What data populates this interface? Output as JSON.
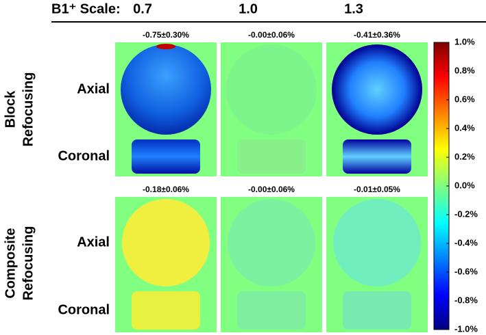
{
  "header": {
    "label": "B1⁺ Scale:",
    "columns": [
      "0.7",
      "1.0",
      "1.3"
    ]
  },
  "groups": [
    {
      "label_lines": [
        "Block",
        "Refocusing"
      ],
      "stats": [
        "-0.75±0.30%",
        "-0.00±0.06%",
        "-0.41±0.36%"
      ],
      "rows": [
        "Axial",
        "Coronal"
      ]
    },
    {
      "label_lines": [
        "Composite",
        "Refocusing"
      ],
      "stats": [
        "-0.18±0.06%",
        "-0.00±0.06%",
        "-0.01±0.05%"
      ],
      "rows": [
        "Axial",
        "Coronal"
      ]
    }
  ],
  "colorbar": {
    "ticks": [
      {
        "value": 1.0,
        "label": "1.0%"
      },
      {
        "value": 0.8,
        "label": "0.8%"
      },
      {
        "value": 0.6,
        "label": "0.6%"
      },
      {
        "value": 0.4,
        "label": "0.4%"
      },
      {
        "value": 0.2,
        "label": "0.2%"
      },
      {
        "value": 0.0,
        "label": "0.0%"
      },
      {
        "value": -0.2,
        "label": "-0.2%"
      },
      {
        "value": -0.4,
        "label": "-0.4%"
      },
      {
        "value": -0.6,
        "label": "-0.6%"
      },
      {
        "value": -0.8,
        "label": "-0.8%"
      },
      {
        "value": -1.0,
        "label": "-1.0%"
      }
    ]
  }
}
